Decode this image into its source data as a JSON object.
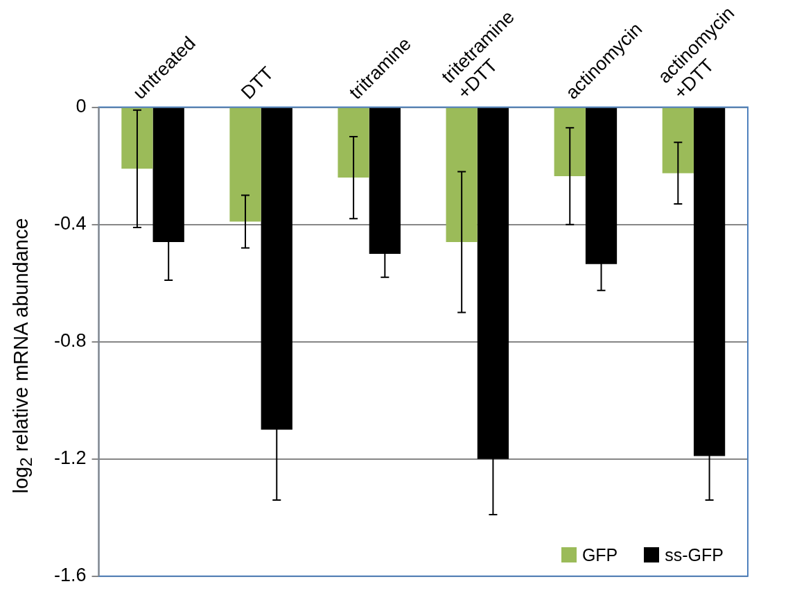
{
  "chart_data": {
    "type": "bar",
    "ylabel": "log$_{2}$ relative mRNA abundance",
    "categories": [
      "untreated",
      "DTT",
      "tritramine",
      "tritetramine\n+DTT",
      "actinomycin",
      "actinomycin\n+DTT"
    ],
    "series": [
      {
        "name": "GFP",
        "color": "#9bbb59",
        "values": [
          -0.21,
          -0.39,
          -0.24,
          -0.46,
          -0.235,
          -0.225
        ],
        "errors": [
          0.2,
          0.09,
          0.14,
          0.24,
          0.165,
          0.105
        ]
      },
      {
        "name": "ss-GFP",
        "color": "#000000",
        "values": [
          -0.46,
          -1.1,
          -0.5,
          -1.2,
          -0.535,
          -1.19
        ],
        "errors": [
          0.13,
          0.24,
          0.08,
          0.19,
          0.09,
          0.15
        ]
      }
    ],
    "ylim": [
      -1.6,
      0
    ],
    "yticks": [
      -1.6,
      -1.2,
      -0.8,
      -0.4,
      0
    ],
    "grid": "y",
    "legend": "bottom right"
  }
}
